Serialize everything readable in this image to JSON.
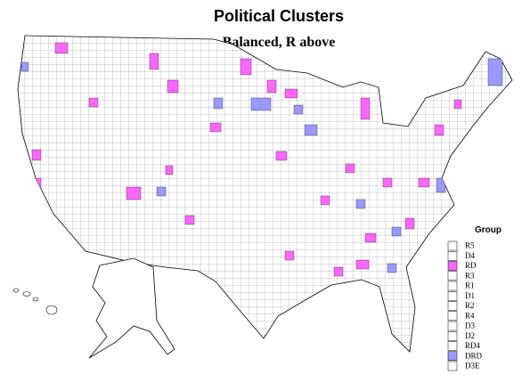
{
  "title": "Political Clusters",
  "subtitle": "Balanced, R above",
  "legend": {
    "title": "Group",
    "items": [
      {
        "label": "R5",
        "color": "#ffffff"
      },
      {
        "label": "D4",
        "color": "#ffffff"
      },
      {
        "label": "RD",
        "color": "#ff66ff"
      },
      {
        "label": "R3",
        "color": "#ffffff"
      },
      {
        "label": "R1",
        "color": "#ffffff"
      },
      {
        "label": "D1",
        "color": "#ffffff"
      },
      {
        "label": "R2",
        "color": "#ffffff"
      },
      {
        "label": "R4",
        "color": "#ffffff"
      },
      {
        "label": "D3",
        "color": "#ffffff"
      },
      {
        "label": "D2",
        "color": "#ffffff"
      },
      {
        "label": "RD4",
        "color": "#ffffff"
      },
      {
        "label": "DRD",
        "color": "#9999ff"
      },
      {
        "label": "D3E",
        "color": "#ffffff"
      }
    ]
  }
}
